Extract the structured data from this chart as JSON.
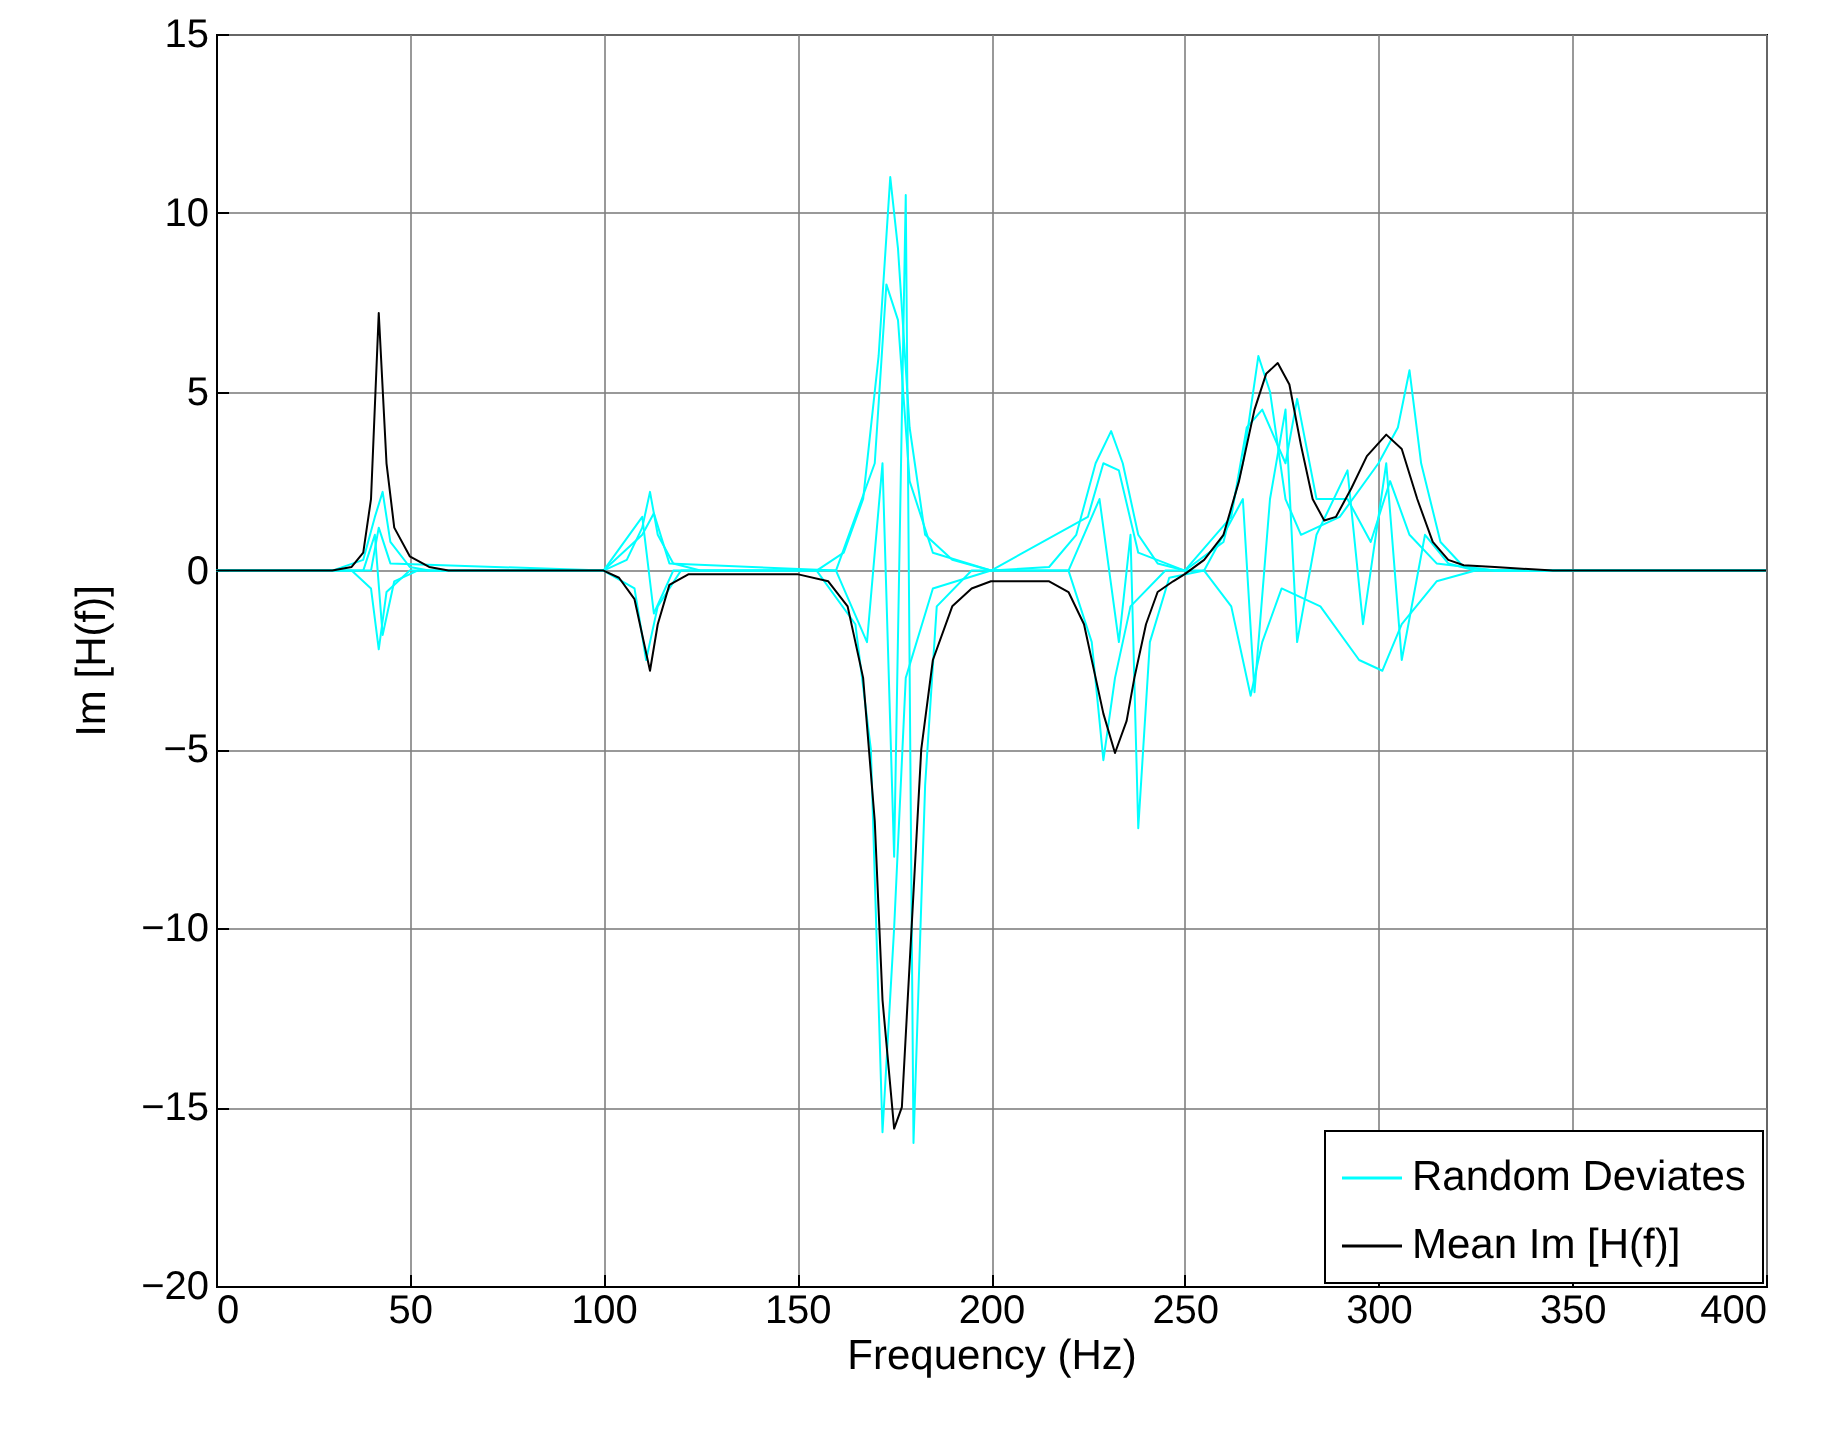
{
  "chart_data": {
    "type": "line",
    "xlabel": "Frequency (Hz)",
    "ylabel": "Im [H(f)]",
    "xlim": [
      0,
      400
    ],
    "xticks": [
      0,
      50,
      100,
      150,
      200,
      250,
      300,
      350,
      400
    ],
    "ylim": [
      -20,
      15
    ],
    "yticks": [
      -20,
      -15,
      -10,
      -5,
      0,
      5,
      10,
      15
    ],
    "grid": true,
    "legend": "bottom right",
    "line_style": "solid",
    "marker": "none",
    "series": [
      {
        "name": "Random Deviates",
        "color": "#00ffff",
        "x": [
          0,
          30,
          38,
          41,
          43,
          45,
          50,
          55,
          100,
          106,
          110,
          112,
          114,
          118,
          125,
          155,
          162,
          167,
          171,
          174,
          176,
          179,
          183,
          190,
          200,
          215,
          222,
          227,
          231,
          234,
          238,
          243,
          250,
          260,
          265,
          269,
          272,
          276,
          280,
          290,
          300,
          305,
          308,
          311,
          316,
          322,
          330,
          400
        ],
        "values": [
          0,
          0,
          0.3,
          1.5,
          2.2,
          0.8,
          0.1,
          0,
          0,
          0.3,
          1.2,
          2.2,
          1,
          0.2,
          0,
          0,
          0.5,
          2,
          6,
          11,
          9,
          4,
          1,
          0.3,
          0,
          0.1,
          1,
          3,
          3.9,
          3,
          1,
          0.2,
          0,
          0.8,
          3,
          6,
          5,
          2,
          1,
          1.5,
          3,
          4,
          5.6,
          3,
          0.8,
          0.1,
          0,
          0
        ]
      },
      {
        "color": "#00ffff",
        "x": [
          0,
          35,
          40,
          42,
          44,
          50,
          100,
          108,
          111,
          114,
          120,
          155,
          165,
          169,
          172,
          175,
          178,
          185,
          200,
          220,
          226,
          229,
          232,
          236,
          245,
          255,
          262,
          267,
          270,
          275,
          285,
          295,
          301,
          306,
          315,
          325,
          400
        ],
        "values": [
          0,
          0,
          -0.5,
          -2.2,
          -0.6,
          0,
          0,
          -0.5,
          -2.5,
          -1,
          0,
          0,
          -1.5,
          -5,
          -15.7,
          -10,
          -3,
          -0.5,
          0,
          0,
          -2,
          -5.3,
          -3,
          -1,
          0,
          0,
          -1,
          -3.5,
          -2,
          -0.5,
          -1,
          -2.5,
          -2.8,
          -1.5,
          -0.3,
          0,
          0
        ]
      },
      {
        "color": "#00ffff",
        "x": [
          0,
          38,
          41,
          43,
          46,
          52,
          100,
          110,
          113,
          118,
          160,
          168,
          172,
          175,
          178,
          180,
          183,
          186,
          195,
          220,
          228,
          233,
          236,
          238,
          241,
          246,
          255,
          265,
          268,
          272,
          276,
          279,
          284,
          292,
          296,
          302,
          306,
          312,
          318,
          325,
          400
        ],
        "values": [
          0,
          0,
          1,
          -1.8,
          -0.3,
          0,
          0,
          1.5,
          -1.2,
          0,
          0,
          -2,
          3,
          -8,
          10.5,
          -16,
          -6,
          -1,
          0,
          0,
          2,
          -2,
          1,
          -7.2,
          -2,
          -0.2,
          0,
          2,
          -3.4,
          2,
          4.5,
          -2,
          1,
          2.8,
          -1.5,
          3,
          -2.5,
          1,
          0.2,
          0,
          0
        ]
      },
      {
        "color": "#00ffff",
        "x": [
          0,
          40,
          42,
          45,
          100,
          110,
          113,
          117,
          160,
          170,
          173,
          176,
          179,
          185,
          200,
          225,
          229,
          233,
          238,
          250,
          262,
          266,
          270,
          276,
          279,
          284,
          292,
          298,
          303,
          308,
          315,
          330,
          400
        ],
        "values": [
          0,
          0,
          1.2,
          0.2,
          0,
          1,
          1.6,
          0.2,
          0,
          3,
          8,
          7,
          2.5,
          0.5,
          0,
          1.5,
          3,
          2.8,
          0.5,
          0,
          1.5,
          4,
          4.5,
          3,
          4.8,
          2,
          2,
          0.8,
          2.5,
          1,
          0.2,
          0,
          0
        ]
      },
      {
        "name": "Mean Im [H(f)]",
        "color": "#000000",
        "x": [
          0,
          30,
          35,
          38,
          40,
          42,
          44,
          46,
          50,
          55,
          60,
          100,
          104,
          108,
          110,
          112,
          114,
          117,
          122,
          150,
          158,
          163,
          167,
          170,
          172,
          175,
          177,
          179,
          182,
          185,
          190,
          195,
          200,
          215,
          220,
          224,
          227,
          229,
          232,
          235,
          237,
          240,
          243,
          247,
          250,
          255,
          260,
          264,
          268,
          271,
          274,
          277,
          280,
          283,
          286,
          289,
          293,
          297,
          302,
          306,
          310,
          314,
          318,
          322,
          330,
          345,
          400
        ],
        "values": [
          0,
          0,
          0.1,
          0.5,
          2,
          7.2,
          3,
          1.2,
          0.4,
          0.1,
          0,
          0,
          -0.2,
          -0.8,
          -1.8,
          -2.8,
          -1.5,
          -0.4,
          -0.1,
          -0.1,
          -0.3,
          -1,
          -3,
          -7,
          -12,
          -15.6,
          -15,
          -11,
          -5,
          -2.5,
          -1,
          -0.5,
          -0.3,
          -0.3,
          -0.6,
          -1.5,
          -3,
          -4,
          -5.1,
          -4.2,
          -3,
          -1.5,
          -0.6,
          -0.3,
          -0.1,
          0.3,
          1,
          2.5,
          4.5,
          5.5,
          5.8,
          5.2,
          3.5,
          2,
          1.4,
          1.5,
          2.3,
          3.2,
          3.8,
          3.4,
          2,
          0.8,
          0.3,
          0.15,
          0.1,
          0,
          0
        ]
      }
    ]
  }
}
